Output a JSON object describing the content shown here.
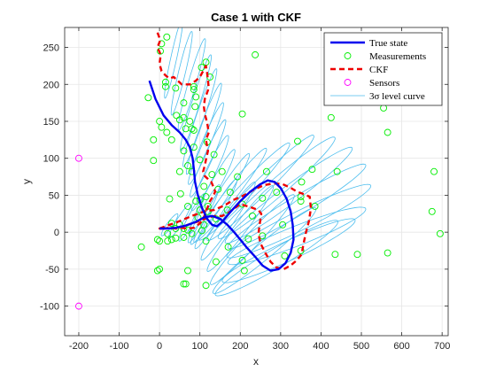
{
  "chart_data": {
    "type": "line",
    "title": "Case 1 with CKF",
    "xlabel": "x",
    "ylabel": "y",
    "xlim": [
      -235,
      715
    ],
    "ylim": [
      -140,
      277
    ],
    "xticks": [
      -200,
      -100,
      0,
      100,
      200,
      300,
      400,
      500,
      600,
      700
    ],
    "xtick_labels": [
      "-200",
      "-100",
      "0",
      "100",
      "200",
      "300",
      "400",
      "500",
      "600",
      "700"
    ],
    "yticks": [
      -100,
      -50,
      0,
      50,
      100,
      150,
      200,
      250
    ],
    "ytick_labels": [
      "-100",
      "-50",
      "0",
      "50",
      "100",
      "150",
      "200",
      "250"
    ],
    "grid": true,
    "legend_position": "top-right",
    "legend": [
      {
        "label": "True state",
        "style": "solid",
        "color": "#0000ee"
      },
      {
        "label": "Measurements",
        "style": "circle",
        "color": "#00ee00"
      },
      {
        "label": "CKF",
        "style": "dashed",
        "color": "#ee0000"
      },
      {
        "label": "Sensors",
        "style": "circle",
        "color": "#ff00ff"
      },
      {
        "label": "3σ level curve",
        "style": "thin",
        "color": "#4dbeee"
      }
    ],
    "series": [
      {
        "name": "True state",
        "color": "#0000ee",
        "points": [
          [
            -25,
            205
          ],
          [
            -10,
            180
          ],
          [
            10,
            158
          ],
          [
            30,
            145
          ],
          [
            50,
            135
          ],
          [
            65,
            125
          ],
          [
            75,
            115
          ],
          [
            82,
            100
          ],
          [
            85,
            85
          ],
          [
            88,
            68
          ],
          [
            95,
            50
          ],
          [
            105,
            33
          ],
          [
            118,
            18
          ],
          [
            130,
            10
          ],
          [
            142,
            8
          ],
          [
            155,
            14
          ],
          [
            175,
            27
          ],
          [
            200,
            42
          ],
          [
            225,
            55
          ],
          [
            250,
            65
          ],
          [
            268,
            70
          ],
          [
            285,
            68
          ],
          [
            300,
            60
          ],
          [
            315,
            45
          ],
          [
            325,
            28
          ],
          [
            330,
            10
          ],
          [
            332,
            -10
          ],
          [
            325,
            -28
          ],
          [
            312,
            -42
          ],
          [
            295,
            -50
          ],
          [
            275,
            -52
          ],
          [
            255,
            -45
          ],
          [
            235,
            -32
          ],
          [
            215,
            -20
          ],
          [
            200,
            -10
          ],
          [
            185,
            0
          ],
          [
            168,
            10
          ],
          [
            150,
            18
          ],
          [
            130,
            22
          ],
          [
            110,
            20
          ],
          [
            90,
            14
          ],
          [
            65,
            9
          ],
          [
            40,
            6
          ],
          [
            20,
            5
          ],
          [
            0,
            5
          ]
        ]
      },
      {
        "name": "CKF",
        "color": "#ee0000",
        "points": [
          [
            -5,
            270
          ],
          [
            2,
            260
          ],
          [
            -5,
            250
          ],
          [
            3,
            240
          ],
          [
            0,
            228
          ],
          [
            5,
            218
          ],
          [
            15,
            212
          ],
          [
            25,
            208
          ],
          [
            35,
            210
          ],
          [
            55,
            200
          ],
          [
            75,
            200
          ],
          [
            90,
            205
          ],
          [
            100,
            210
          ],
          [
            115,
            225
          ],
          [
            118,
            215
          ],
          [
            122,
            195
          ],
          [
            112,
            180
          ],
          [
            110,
            170
          ],
          [
            112,
            160
          ],
          [
            118,
            148
          ],
          [
            122,
            135
          ],
          [
            115,
            125
          ],
          [
            120,
            110
          ],
          [
            115,
            98
          ],
          [
            112,
            90
          ],
          [
            108,
            82
          ],
          [
            112,
            76
          ],
          [
            120,
            72
          ],
          [
            128,
            68
          ],
          [
            133,
            62
          ],
          [
            138,
            55
          ],
          [
            132,
            48
          ],
          [
            125,
            42
          ],
          [
            120,
            35
          ],
          [
            115,
            28
          ],
          [
            110,
            20
          ],
          [
            100,
            12
          ],
          [
            85,
            6
          ],
          [
            70,
            5
          ],
          [
            55,
            6
          ],
          [
            40,
            5
          ],
          [
            25,
            6
          ],
          [
            10,
            5
          ],
          [
            0,
            5
          ],
          [
            25,
            10
          ],
          [
            50,
            15
          ],
          [
            80,
            22
          ],
          [
            110,
            28
          ],
          [
            135,
            30
          ],
          [
            160,
            36
          ],
          [
            185,
            44
          ],
          [
            210,
            50
          ],
          [
            235,
            58
          ],
          [
            260,
            64
          ],
          [
            285,
            66
          ],
          [
            305,
            65
          ],
          [
            325,
            60
          ],
          [
            340,
            55
          ],
          [
            355,
            52
          ],
          [
            372,
            48
          ],
          [
            375,
            32
          ],
          [
            370,
            15
          ],
          [
            362,
            -2
          ],
          [
            357,
            -15
          ],
          [
            352,
            -30
          ],
          [
            340,
            -38
          ],
          [
            325,
            -45
          ],
          [
            308,
            -50
          ],
          [
            290,
            -48
          ],
          [
            275,
            -40
          ],
          [
            262,
            -28
          ],
          [
            250,
            -15
          ],
          [
            245,
            -2
          ],
          [
            248,
            10
          ],
          [
            252,
            25
          ],
          [
            245,
            30
          ],
          [
            235,
            32
          ],
          [
            225,
            34
          ],
          [
            212,
            36
          ],
          [
            200,
            38
          ],
          [
            185,
            32
          ],
          [
            170,
            26
          ],
          [
            155,
            22
          ],
          [
            138,
            22
          ],
          [
            120,
            20
          ],
          [
            100,
            15
          ],
          [
            80,
            12
          ],
          [
            60,
            8
          ],
          [
            40,
            6
          ],
          [
            20,
            5
          ],
          [
            0,
            5
          ]
        ]
      }
    ],
    "measurements": [
      [
        18,
        264
      ],
      [
        5,
        255
      ],
      [
        2,
        245
      ],
      [
        237,
        240
      ],
      [
        115,
        230
      ],
      [
        104,
        223
      ],
      [
        125,
        210
      ],
      [
        15,
        203
      ],
      [
        15,
        197
      ],
      [
        85,
        197
      ],
      [
        40,
        195
      ],
      [
        85,
        193
      ],
      [
        90,
        183
      ],
      [
        -28,
        182
      ],
      [
        60,
        175
      ],
      [
        88,
        170
      ],
      [
        205,
        160
      ],
      [
        42,
        158
      ],
      [
        555,
        168
      ],
      [
        0,
        150
      ],
      [
        50,
        152
      ],
      [
        60,
        155
      ],
      [
        75,
        150
      ],
      [
        425,
        155
      ],
      [
        5,
        142
      ],
      [
        85,
        138
      ],
      [
        18,
        135
      ],
      [
        65,
        140
      ],
      [
        80,
        140
      ],
      [
        30,
        125
      ],
      [
        -15,
        125
      ],
      [
        565,
        135
      ],
      [
        118,
        122
      ],
      [
        342,
        123
      ],
      [
        85,
        115
      ],
      [
        60,
        110
      ],
      [
        135,
        105
      ],
      [
        -15,
        97
      ],
      [
        100,
        98
      ],
      [
        70,
        90
      ],
      [
        378,
        85
      ],
      [
        50,
        82
      ],
      [
        155,
        82
      ],
      [
        265,
        82
      ],
      [
        80,
        82
      ],
      [
        440,
        82
      ],
      [
        680,
        82
      ],
      [
        130,
        78
      ],
      [
        193,
        75
      ],
      [
        352,
        68
      ],
      [
        110,
        62
      ],
      [
        145,
        58
      ],
      [
        175,
        54
      ],
      [
        290,
        54
      ],
      [
        52,
        52
      ],
      [
        115,
        48
      ],
      [
        350,
        48
      ],
      [
        255,
        46
      ],
      [
        25,
        45
      ],
      [
        100,
        44
      ],
      [
        90,
        42
      ],
      [
        350,
        42
      ],
      [
        205,
        38
      ],
      [
        120,
        35
      ],
      [
        70,
        35
      ],
      [
        168,
        30
      ],
      [
        385,
        35
      ],
      [
        100,
        30
      ],
      [
        120,
        28
      ],
      [
        230,
        22
      ],
      [
        95,
        20
      ],
      [
        675,
        28
      ],
      [
        140,
        18
      ],
      [
        30,
        12
      ],
      [
        50,
        10
      ],
      [
        110,
        10
      ],
      [
        305,
        10
      ],
      [
        40,
        5
      ],
      [
        60,
        5
      ],
      [
        70,
        3
      ],
      [
        20,
        -2
      ],
      [
        105,
        2
      ],
      [
        80,
        -2
      ],
      [
        695,
        -2
      ],
      [
        255,
        -5
      ],
      [
        60,
        -7
      ],
      [
        40,
        -8
      ],
      [
        30,
        -10
      ],
      [
        220,
        -9
      ],
      [
        -5,
        -10
      ],
      [
        20,
        -12
      ],
      [
        115,
        -12
      ],
      [
        0,
        -12
      ],
      [
        -45,
        -20
      ],
      [
        170,
        -20
      ],
      [
        350,
        -25
      ],
      [
        565,
        -28
      ],
      [
        435,
        -30
      ],
      [
        490,
        -30
      ],
      [
        310,
        -32
      ],
      [
        205,
        -38
      ],
      [
        140,
        -40
      ],
      [
        0,
        -50
      ],
      [
        -5,
        -52
      ],
      [
        70,
        -52
      ],
      [
        210,
        -52
      ],
      [
        60,
        -70
      ],
      [
        65,
        -70
      ],
      [
        115,
        -72
      ]
    ],
    "sensors": [
      [
        -200,
        100
      ],
      [
        -200,
        -100
      ]
    ],
    "ellipses": [
      {
        "cx": 35,
        "cy": 235,
        "a": 58,
        "b": 7,
        "angle": 68
      },
      {
        "cx": 55,
        "cy": 215,
        "a": 62,
        "b": 8,
        "angle": 66
      },
      {
        "cx": 80,
        "cy": 200,
        "a": 70,
        "b": 9,
        "angle": 62
      },
      {
        "cx": 90,
        "cy": 175,
        "a": 75,
        "b": 9,
        "angle": 60
      },
      {
        "cx": 100,
        "cy": 155,
        "a": 78,
        "b": 9,
        "angle": 58
      },
      {
        "cx": 110,
        "cy": 140,
        "a": 75,
        "b": 9,
        "angle": 55
      },
      {
        "cx": 115,
        "cy": 120,
        "a": 70,
        "b": 9,
        "angle": 52
      },
      {
        "cx": 120,
        "cy": 100,
        "a": 68,
        "b": 9,
        "angle": 50
      },
      {
        "cx": 125,
        "cy": 80,
        "a": 68,
        "b": 10,
        "angle": 48
      },
      {
        "cx": 130,
        "cy": 55,
        "a": 80,
        "b": 10,
        "angle": 45
      },
      {
        "cx": 150,
        "cy": 45,
        "a": 95,
        "b": 10,
        "angle": 40
      },
      {
        "cx": 175,
        "cy": 50,
        "a": 110,
        "b": 11,
        "angle": 35
      },
      {
        "cx": 210,
        "cy": 55,
        "a": 130,
        "b": 12,
        "angle": 30
      },
      {
        "cx": 250,
        "cy": 60,
        "a": 150,
        "b": 13,
        "angle": 28
      },
      {
        "cx": 290,
        "cy": 60,
        "a": 160,
        "b": 14,
        "angle": 25
      },
      {
        "cx": 320,
        "cy": 50,
        "a": 170,
        "b": 14,
        "angle": 22
      },
      {
        "cx": 340,
        "cy": 35,
        "a": 180,
        "b": 14,
        "angle": 18
      },
      {
        "cx": 345,
        "cy": 15,
        "a": 185,
        "b": 14,
        "angle": 15
      },
      {
        "cx": 340,
        "cy": -5,
        "a": 175,
        "b": 14,
        "angle": 12
      },
      {
        "cx": 320,
        "cy": -25,
        "a": 170,
        "b": 14,
        "angle": 14
      },
      {
        "cx": 290,
        "cy": -35,
        "a": 160,
        "b": 14,
        "angle": 18
      },
      {
        "cx": 260,
        "cy": -25,
        "a": 140,
        "b": 13,
        "angle": 24
      },
      {
        "cx": 230,
        "cy": -10,
        "a": 120,
        "b": 12,
        "angle": 30
      },
      {
        "cx": 200,
        "cy": 5,
        "a": 100,
        "b": 11,
        "angle": 35
      },
      {
        "cx": 170,
        "cy": 15,
        "a": 85,
        "b": 10,
        "angle": 38
      },
      {
        "cx": 140,
        "cy": 25,
        "a": 70,
        "b": 9,
        "angle": 42
      },
      {
        "cx": 110,
        "cy": 25,
        "a": 55,
        "b": 8,
        "angle": 45
      },
      {
        "cx": 80,
        "cy": 20,
        "a": 45,
        "b": 7,
        "angle": 45
      },
      {
        "cx": 50,
        "cy": 15,
        "a": 35,
        "b": 6,
        "angle": 40
      },
      {
        "cx": 25,
        "cy": 10,
        "a": 25,
        "b": 5,
        "angle": 35
      }
    ]
  }
}
